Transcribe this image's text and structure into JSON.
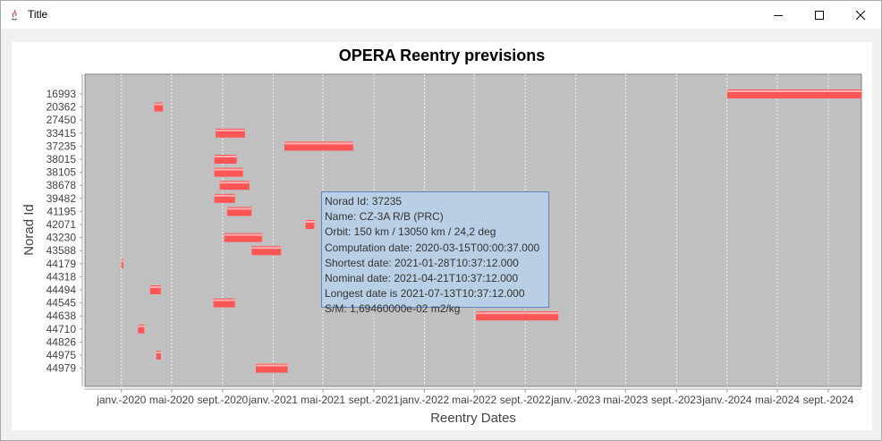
{
  "window": {
    "title": "Title",
    "minimize_icon": "minimize-icon",
    "maximize_icon": "maximize-icon",
    "close_icon": "close-icon"
  },
  "chart_data": {
    "type": "gantt",
    "title": "OPERA Reentry previsions",
    "xlabel": "Reentry Dates",
    "ylabel": "Norad Id",
    "x_tick_labels": [
      "janv.-2020",
      "mai-2020",
      "sept.-2020",
      "janv.-2021",
      "mai-2021",
      "sept.-2021",
      "janv.-2022",
      "mai-2022",
      "sept.-2022",
      "janv.-2023",
      "mai-2023",
      "sept.-2023",
      "janv.-2024",
      "mai-2024",
      "sept.-2024"
    ],
    "x_tick_dates": [
      "2020-01-01",
      "2020-05-01",
      "2020-09-01",
      "2021-01-01",
      "2021-05-01",
      "2021-09-01",
      "2022-01-01",
      "2022-05-01",
      "2022-09-01",
      "2023-01-01",
      "2023-05-01",
      "2023-09-01",
      "2024-01-01",
      "2024-05-01",
      "2024-09-01"
    ],
    "xlim": [
      "2019-10-05",
      "2024-11-20"
    ],
    "categories": [
      "16993",
      "20362",
      "27450",
      "33415",
      "37235",
      "38015",
      "38105",
      "38678",
      "39482",
      "41195",
      "42071",
      "43230",
      "43588",
      "44179",
      "44318",
      "44494",
      "44545",
      "44638",
      "44710",
      "44826",
      "44975",
      "44979"
    ],
    "bars": [
      {
        "id": "16993",
        "start": "2024-01-01",
        "end": "2024-11-20"
      },
      {
        "id": "20362",
        "start": "2020-03-20",
        "end": "2020-04-10"
      },
      {
        "id": "33415",
        "start": "2020-08-15",
        "end": "2020-10-25"
      },
      {
        "id": "37235",
        "start": "2021-01-28",
        "end": "2021-07-13"
      },
      {
        "id": "38015",
        "start": "2020-08-12",
        "end": "2020-10-05"
      },
      {
        "id": "38105",
        "start": "2020-08-12",
        "end": "2020-10-20"
      },
      {
        "id": "38678",
        "start": "2020-08-25",
        "end": "2020-11-05"
      },
      {
        "id": "39482",
        "start": "2020-08-12",
        "end": "2020-10-01"
      },
      {
        "id": "41195",
        "start": "2020-09-12",
        "end": "2020-11-10"
      },
      {
        "id": "42071",
        "start": "2021-03-20",
        "end": "2021-04-10"
      },
      {
        "id": "43230",
        "start": "2020-09-05",
        "end": "2020-12-05"
      },
      {
        "id": "43588",
        "start": "2020-11-10",
        "end": "2021-01-20"
      },
      {
        "id": "44179",
        "start": "2020-01-01",
        "end": "2020-01-05"
      },
      {
        "id": "44494",
        "start": "2020-03-10",
        "end": "2020-04-05"
      },
      {
        "id": "44545",
        "start": "2020-08-10",
        "end": "2020-10-01"
      },
      {
        "id": "44638",
        "start": "2022-05-05",
        "end": "2022-11-20"
      },
      {
        "id": "44710",
        "start": "2020-02-10",
        "end": "2020-02-25"
      },
      {
        "id": "44975",
        "start": "2020-03-25",
        "end": "2020-04-05"
      },
      {
        "id": "44979",
        "start": "2020-11-20",
        "end": "2021-02-05"
      }
    ],
    "grid": true,
    "colors": {
      "plot_bg": "#c0c0c0",
      "bar": "#ff5555",
      "bar_highlight": "#ffb0b0"
    }
  },
  "tooltip": {
    "lines": [
      "Norad Id: 37235",
      "Name: CZ-3A R/B (PRC)",
      "Orbit: 150 km / 13050 km / 24,2 deg",
      "Computation date: 2020-03-15T00:00:37.000",
      "Shortest date: 2021-01-28T10:37:12.000",
      "Nominal date: 2021-04-21T10:37:12.000",
      "Longest date is 2021-07-13T10:37:12.000",
      "S/M: 1,69460000e-02 m2/kg"
    ]
  }
}
